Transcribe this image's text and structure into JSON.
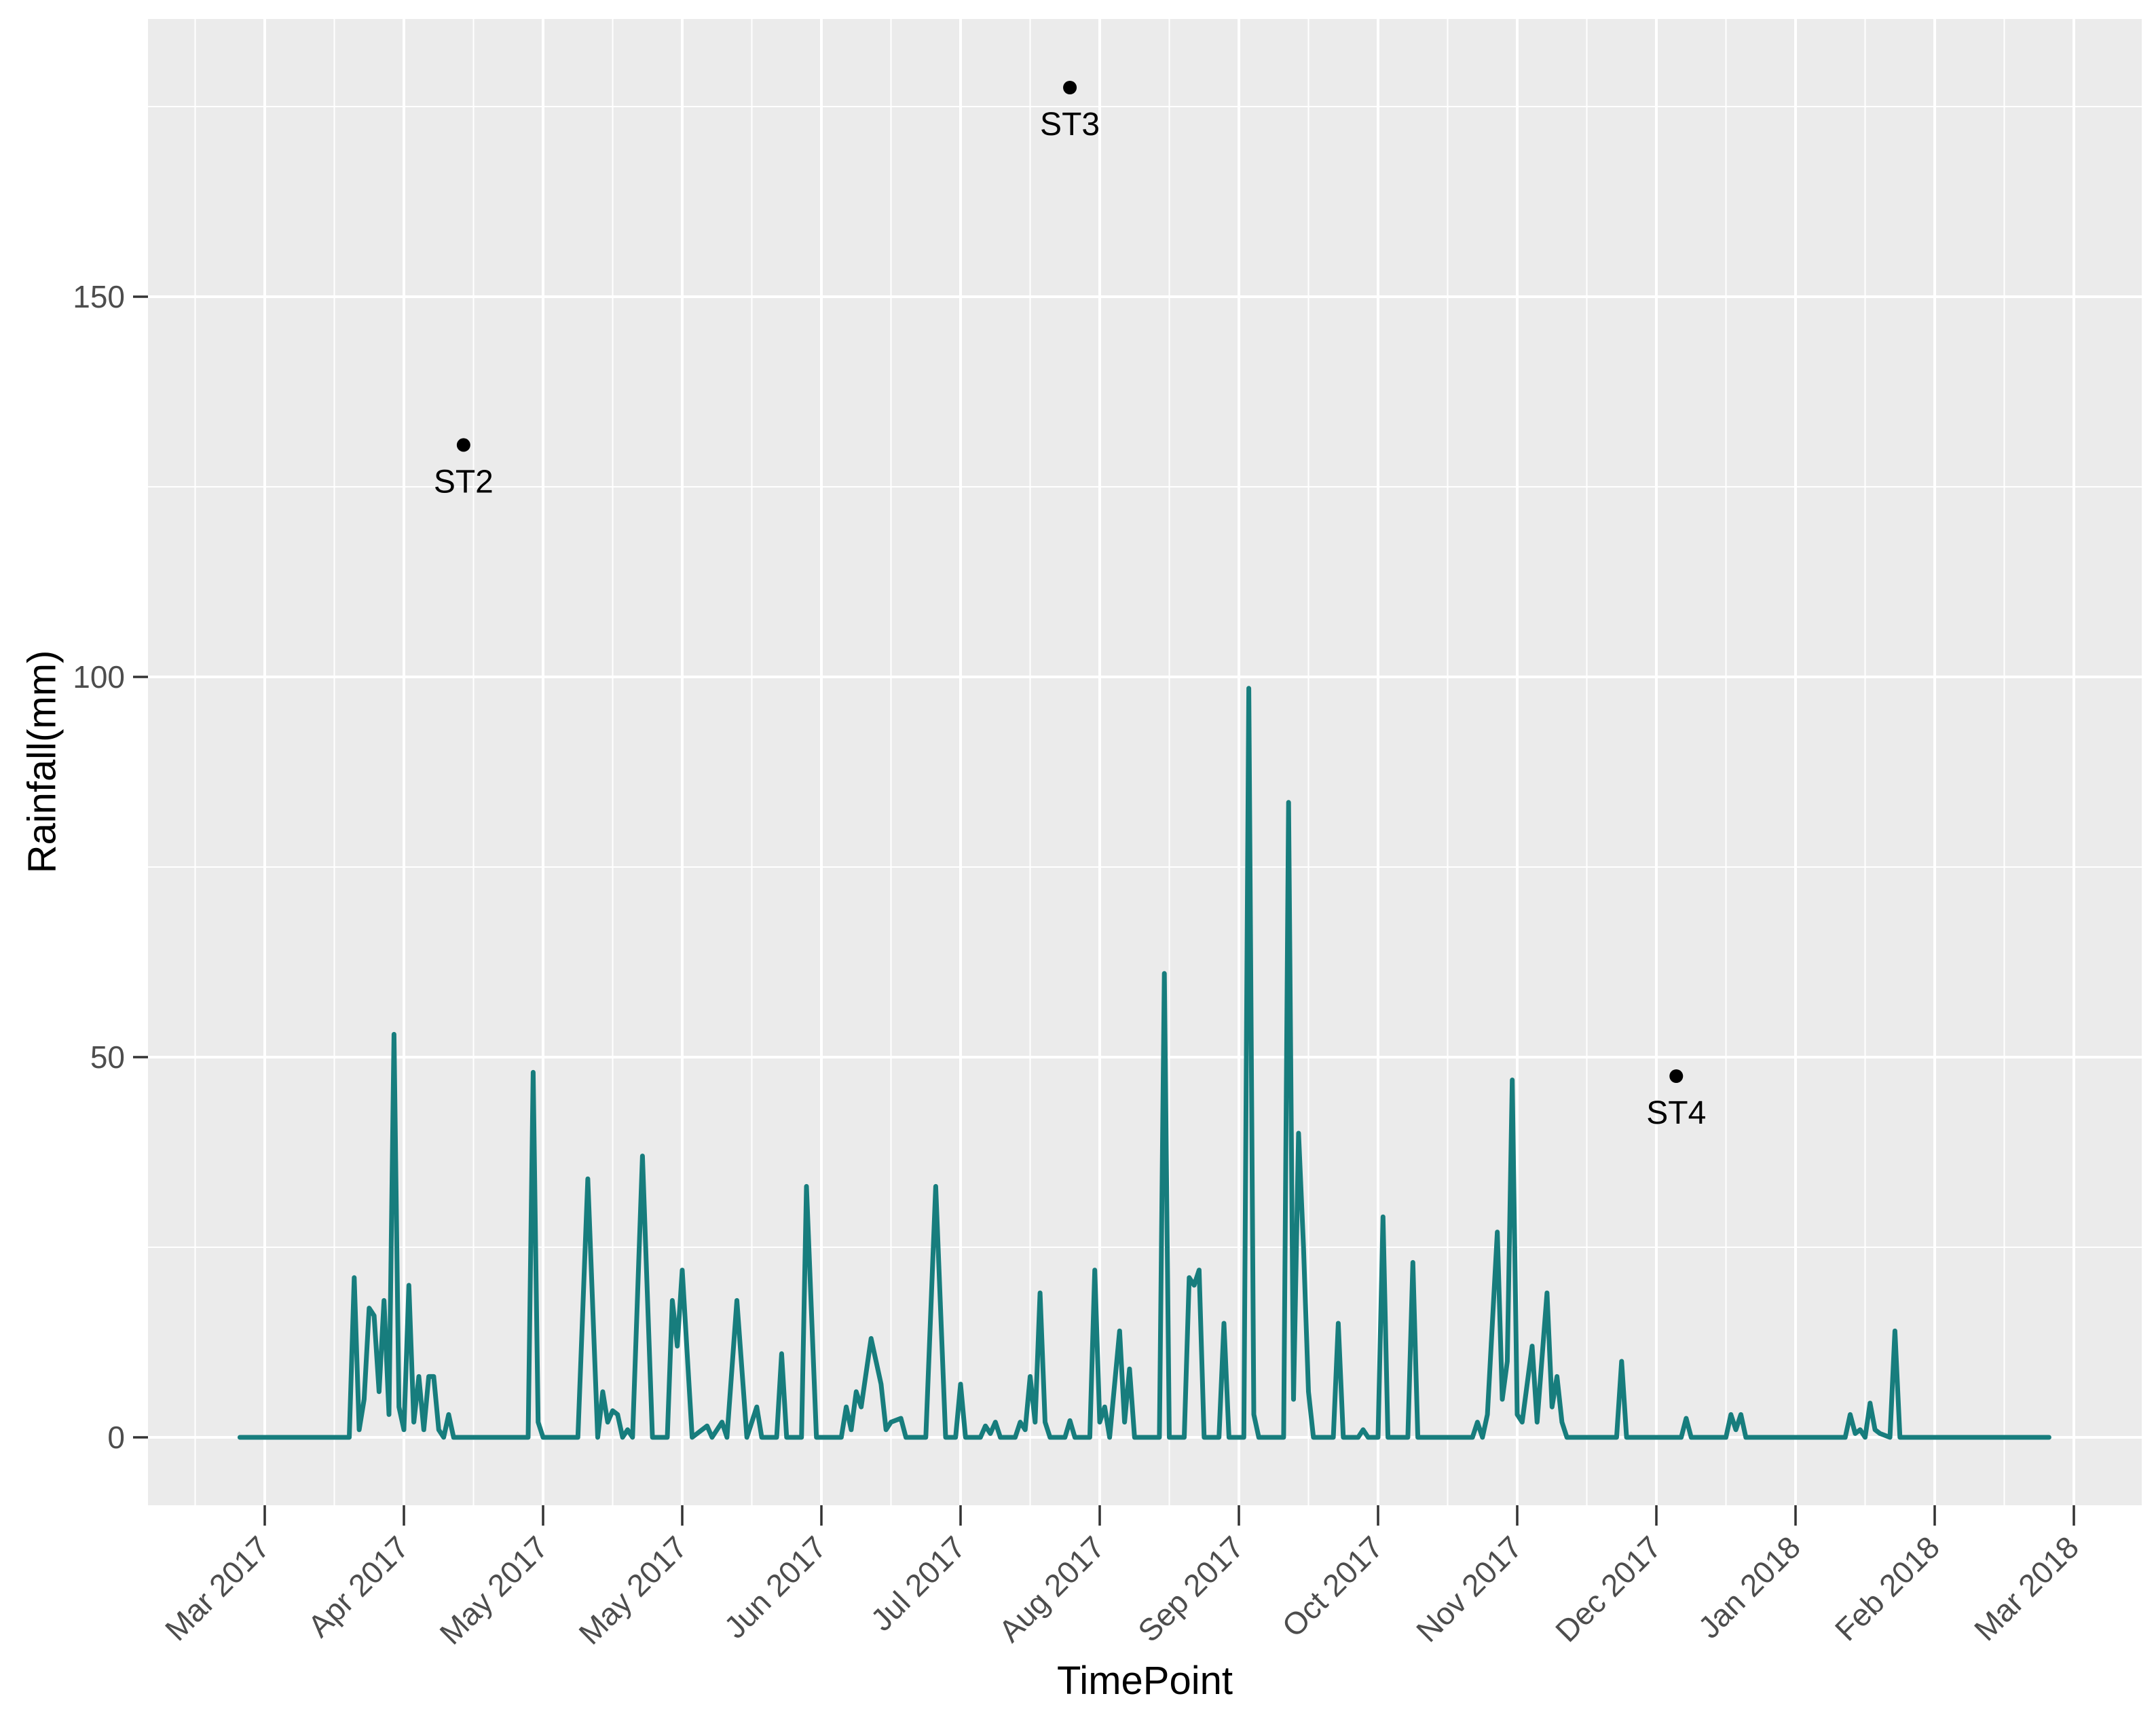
{
  "chart_data": {
    "type": "line",
    "title": "",
    "xlabel": "TimePoint",
    "ylabel": "Rainfall(mm)",
    "legend": "none",
    "grid": "on",
    "panel_bg": "#EBEBEB",
    "grid_color": "#FFFFFF",
    "line_color": "#177D7D",
    "tick_text_color": "#4D4D4D",
    "tick_mark_color": "#333333",
    "annotation_color": "#000000",
    "y_ticks": [
      0,
      50,
      100,
      150
    ],
    "y_minor_ticks": [
      25,
      75,
      125,
      175
    ],
    "ylim": [
      -9,
      186.5
    ],
    "xlim": [
      "2017-02-10",
      "2018-03-19"
    ],
    "x_tick_dates": [
      "2017-03-06",
      "2017-04-03",
      "2017-05-01",
      "2017-05-29",
      "2017-06-26",
      "2017-07-24",
      "2017-08-21",
      "2017-09-18",
      "2017-10-16",
      "2017-11-13",
      "2017-12-11",
      "2018-01-08",
      "2018-02-05",
      "2018-03-05"
    ],
    "x_tick_labels": [
      "Mar 2017",
      "Apr 2017",
      "May 2017",
      "May 2017",
      "Jun 2017",
      "Jul 2017",
      "Aug 2017",
      "Sep 2017",
      "Oct 2017",
      "Nov 2017",
      "Dec 2017",
      "Jan 2018",
      "Feb 2018",
      "Mar 2018"
    ],
    "series": [
      {
        "name": "Rainfall",
        "points": [
          [
            "2017-03-01",
            0
          ],
          [
            "2017-03-23",
            0
          ],
          [
            "2017-03-24",
            21
          ],
          [
            "2017-03-25",
            1
          ],
          [
            "2017-03-26",
            5
          ],
          [
            "2017-03-27",
            17
          ],
          [
            "2017-03-28",
            16
          ],
          [
            "2017-03-29",
            6
          ],
          [
            "2017-03-30",
            18
          ],
          [
            "2017-03-31",
            3
          ],
          [
            "2017-04-01",
            53
          ],
          [
            "2017-04-02",
            4
          ],
          [
            "2017-04-03",
            1
          ],
          [
            "2017-04-04",
            20
          ],
          [
            "2017-04-05",
            2
          ],
          [
            "2017-04-06",
            8
          ],
          [
            "2017-04-07",
            1
          ],
          [
            "2017-04-08",
            8
          ],
          [
            "2017-04-09",
            8
          ],
          [
            "2017-04-10",
            1
          ],
          [
            "2017-04-11",
            0
          ],
          [
            "2017-04-12",
            3
          ],
          [
            "2017-04-13",
            0
          ],
          [
            "2017-04-28",
            0
          ],
          [
            "2017-04-29",
            48
          ],
          [
            "2017-04-30",
            2
          ],
          [
            "2017-05-01",
            0
          ],
          [
            "2017-05-08",
            0
          ],
          [
            "2017-05-10",
            34
          ],
          [
            "2017-05-12",
            0
          ],
          [
            "2017-05-13",
            6
          ],
          [
            "2017-05-14",
            2
          ],
          [
            "2017-05-15",
            3.5
          ],
          [
            "2017-05-16",
            3
          ],
          [
            "2017-05-17",
            0
          ],
          [
            "2017-05-18",
            1
          ],
          [
            "2017-05-19",
            0
          ],
          [
            "2017-05-21",
            37
          ],
          [
            "2017-05-23",
            0
          ],
          [
            "2017-05-26",
            0
          ],
          [
            "2017-05-27",
            18
          ],
          [
            "2017-05-28",
            12
          ],
          [
            "2017-05-29",
            22
          ],
          [
            "2017-05-31",
            0
          ],
          [
            "2017-06-03",
            1.5
          ],
          [
            "2017-06-04",
            0
          ],
          [
            "2017-06-06",
            2
          ],
          [
            "2017-06-07",
            0
          ],
          [
            "2017-06-09",
            18
          ],
          [
            "2017-06-11",
            0
          ],
          [
            "2017-06-13",
            4
          ],
          [
            "2017-06-14",
            0
          ],
          [
            "2017-06-17",
            0
          ],
          [
            "2017-06-18",
            11
          ],
          [
            "2017-06-19",
            0
          ],
          [
            "2017-06-22",
            0
          ],
          [
            "2017-06-23",
            33
          ],
          [
            "2017-06-25",
            0
          ],
          [
            "2017-06-30",
            0
          ],
          [
            "2017-07-01",
            4
          ],
          [
            "2017-07-02",
            1
          ],
          [
            "2017-07-03",
            6
          ],
          [
            "2017-07-04",
            4
          ],
          [
            "2017-07-06",
            13
          ],
          [
            "2017-07-08",
            7
          ],
          [
            "2017-07-09",
            1
          ],
          [
            "2017-07-10",
            2
          ],
          [
            "2017-07-12",
            2.5
          ],
          [
            "2017-07-13",
            0
          ],
          [
            "2017-07-17",
            0
          ],
          [
            "2017-07-19",
            33
          ],
          [
            "2017-07-21",
            0
          ],
          [
            "2017-07-23",
            0
          ],
          [
            "2017-07-24",
            7
          ],
          [
            "2017-07-25",
            0
          ],
          [
            "2017-07-28",
            0
          ],
          [
            "2017-07-29",
            1.5
          ],
          [
            "2017-07-30",
            0.5
          ],
          [
            "2017-07-31",
            2
          ],
          [
            "2017-08-01",
            0
          ],
          [
            "2017-08-04",
            0
          ],
          [
            "2017-08-05",
            2
          ],
          [
            "2017-08-06",
            1
          ],
          [
            "2017-08-07",
            8
          ],
          [
            "2017-08-08",
            2
          ],
          [
            "2017-08-09",
            19
          ],
          [
            "2017-08-10",
            2
          ],
          [
            "2017-08-11",
            0
          ],
          [
            "2017-08-14",
            0
          ],
          [
            "2017-08-15",
            2.2
          ],
          [
            "2017-08-16",
            0
          ],
          [
            "2017-08-19",
            0
          ],
          [
            "2017-08-20",
            22
          ],
          [
            "2017-08-21",
            2
          ],
          [
            "2017-08-22",
            4
          ],
          [
            "2017-08-23",
            0
          ],
          [
            "2017-08-25",
            14
          ],
          [
            "2017-08-26",
            2
          ],
          [
            "2017-08-27",
            9
          ],
          [
            "2017-08-28",
            0
          ],
          [
            "2017-09-02",
            0
          ],
          [
            "2017-09-03",
            61
          ],
          [
            "2017-09-04",
            0
          ],
          [
            "2017-09-07",
            0
          ],
          [
            "2017-09-08",
            21
          ],
          [
            "2017-09-09",
            20
          ],
          [
            "2017-09-10",
            22
          ],
          [
            "2017-09-11",
            0
          ],
          [
            "2017-09-14",
            0
          ],
          [
            "2017-09-15",
            15
          ],
          [
            "2017-09-16",
            0
          ],
          [
            "2017-09-19",
            0
          ],
          [
            "2017-09-20",
            98.5
          ],
          [
            "2017-09-21",
            3
          ],
          [
            "2017-09-22",
            0
          ],
          [
            "2017-09-27",
            0
          ],
          [
            "2017-09-28",
            83.5
          ],
          [
            "2017-09-29",
            5
          ],
          [
            "2017-09-30",
            40
          ],
          [
            "2017-10-01",
            25
          ],
          [
            "2017-10-02",
            6
          ],
          [
            "2017-10-03",
            0
          ],
          [
            "2017-10-07",
            0
          ],
          [
            "2017-10-08",
            15
          ],
          [
            "2017-10-09",
            0
          ],
          [
            "2017-10-12",
            0
          ],
          [
            "2017-10-13",
            1
          ],
          [
            "2017-10-14",
            0
          ],
          [
            "2017-10-16",
            0
          ],
          [
            "2017-10-17",
            29
          ],
          [
            "2017-10-18",
            0
          ],
          [
            "2017-10-22",
            0
          ],
          [
            "2017-10-23",
            23
          ],
          [
            "2017-10-24",
            0
          ],
          [
            "2017-11-04",
            0
          ],
          [
            "2017-11-05",
            2
          ],
          [
            "2017-11-06",
            0
          ],
          [
            "2017-11-07",
            3
          ],
          [
            "2017-11-08",
            15
          ],
          [
            "2017-11-09",
            27
          ],
          [
            "2017-11-10",
            5
          ],
          [
            "2017-11-11",
            10
          ],
          [
            "2017-11-12",
            47
          ],
          [
            "2017-11-13",
            3
          ],
          [
            "2017-11-14",
            2
          ],
          [
            "2017-11-16",
            12
          ],
          [
            "2017-11-17",
            2
          ],
          [
            "2017-11-19",
            19
          ],
          [
            "2017-11-20",
            4
          ],
          [
            "2017-11-21",
            8
          ],
          [
            "2017-11-22",
            2
          ],
          [
            "2017-11-23",
            0
          ],
          [
            "2017-12-03",
            0
          ],
          [
            "2017-12-04",
            10
          ],
          [
            "2017-12-05",
            0
          ],
          [
            "2017-12-16",
            0
          ],
          [
            "2017-12-17",
            2.5
          ],
          [
            "2017-12-18",
            0
          ],
          [
            "2017-12-25",
            0
          ],
          [
            "2017-12-26",
            3
          ],
          [
            "2017-12-27",
            1
          ],
          [
            "2017-12-28",
            3
          ],
          [
            "2017-12-29",
            0
          ],
          [
            "2018-01-18",
            0
          ],
          [
            "2018-01-19",
            3
          ],
          [
            "2018-01-20",
            0.5
          ],
          [
            "2018-01-21",
            1
          ],
          [
            "2018-01-22",
            0
          ],
          [
            "2018-01-23",
            4.5
          ],
          [
            "2018-01-24",
            1
          ],
          [
            "2018-01-25",
            0.5
          ],
          [
            "2018-01-27",
            0
          ],
          [
            "2018-01-28",
            14
          ],
          [
            "2018-01-29",
            0
          ],
          [
            "2018-02-28",
            0
          ]
        ]
      }
    ],
    "annotations": [
      {
        "label": "ST2",
        "date": "2017-04-15",
        "value": 130.5
      },
      {
        "label": "ST3",
        "date": "2017-08-15",
        "value": 177.5
      },
      {
        "label": "ST4",
        "date": "2017-12-15",
        "value": 47.5
      }
    ]
  }
}
